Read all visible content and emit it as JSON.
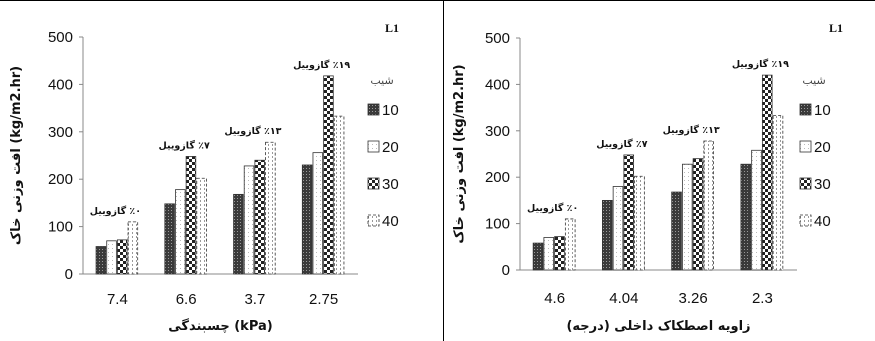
{
  "chart_data": [
    {
      "type": "bar",
      "panel_tag": "L1",
      "categories": [
        "7.4",
        "6.6",
        "3.7",
        "2.75"
      ],
      "xlabel": "چسبندگی (kPa)",
      "ylabel": "افت وزنی خاک (kg/m2.hr)",
      "ylim": [
        0,
        500
      ],
      "yticks": [
        0,
        100,
        200,
        300,
        400,
        500
      ],
      "legend_title": "شیب",
      "series": [
        {
          "name": "10",
          "values": [
            58,
            148,
            168,
            230
          ]
        },
        {
          "name": "20",
          "values": [
            70,
            178,
            228,
            256
          ]
        },
        {
          "name": "30",
          "values": [
            72,
            248,
            240,
            418
          ]
        },
        {
          "name": "40",
          "values": [
            110,
            202,
            278,
            333
          ]
        }
      ],
      "annotations": [
        "٠٪ گازوییل",
        "٧٪ گازوییل",
        "١٣٪ گازوییل",
        "١٩٪ گازوییل"
      ]
    },
    {
      "type": "bar",
      "panel_tag": "L1",
      "categories": [
        "4.6",
        "4.04",
        "3.26",
        "2.3"
      ],
      "xlabel": "زاویه اصطکاک داخلی (درجه)",
      "ylabel": "افت وزنی خاک (kg/m2.hr)",
      "ylim": [
        0,
        500
      ],
      "yticks": [
        0,
        100,
        200,
        300,
        400,
        500
      ],
      "legend_title": "شیب",
      "series": [
        {
          "name": "10",
          "values": [
            58,
            150,
            168,
            228
          ]
        },
        {
          "name": "20",
          "values": [
            70,
            180,
            228,
            258
          ]
        },
        {
          "name": "30",
          "values": [
            72,
            248,
            240,
            420
          ]
        },
        {
          "name": "40",
          "values": [
            110,
            202,
            278,
            333
          ]
        }
      ],
      "annotations": [
        "٠٪ گازوییل",
        "٧٪ گازوییل",
        "١٣٪ گازوییل",
        "١٩٪ گازوییل"
      ]
    }
  ],
  "colors": {
    "s10": "#444444",
    "s20": "#ffffff",
    "s30": "#333333",
    "s40": "#ffffff"
  }
}
